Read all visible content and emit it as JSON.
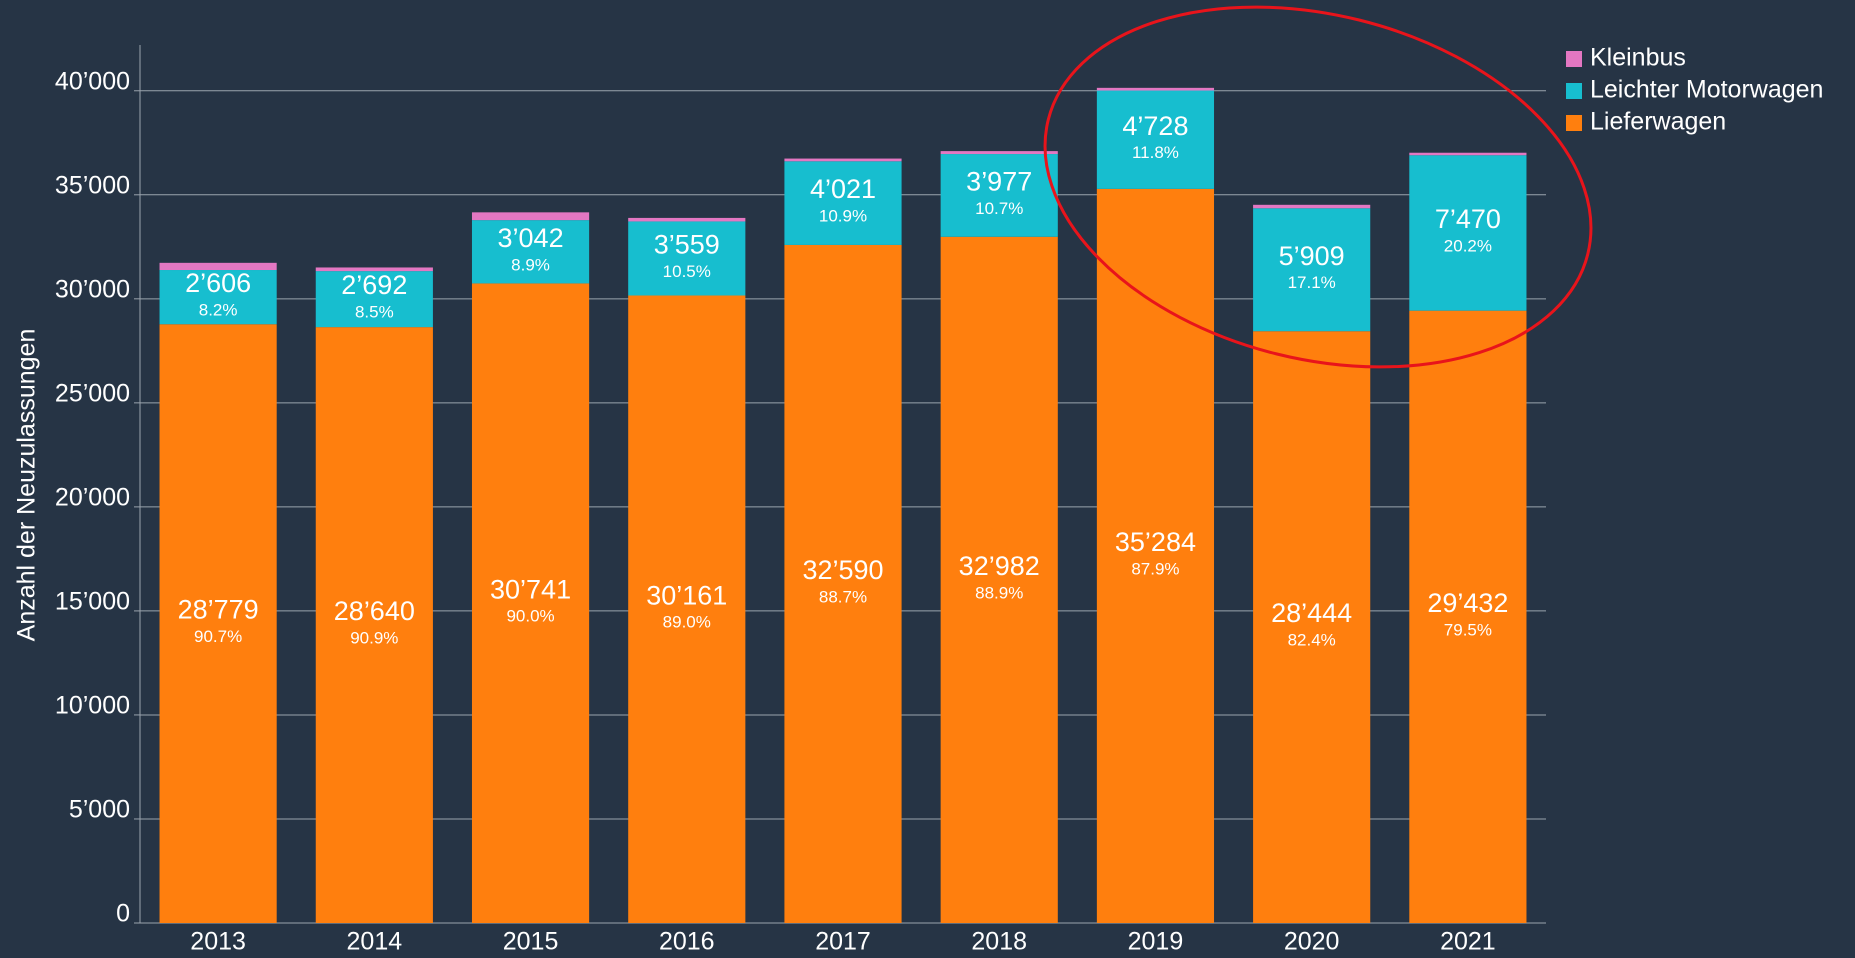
{
  "chart_data": {
    "type": "stacked_bar",
    "y_label": "Anzahl der Neuzulassungen",
    "categories": [
      "2013",
      "2014",
      "2015",
      "2016",
      "2017",
      "2018",
      "2019",
      "2020",
      "2021"
    ],
    "series": [
      {
        "name": "Lieferwagen",
        "color": "#ff7f0e",
        "values": [
          28779,
          28640,
          30741,
          30161,
          32590,
          32982,
          35284,
          28444,
          29432
        ],
        "value_labels": [
          "28’779",
          "28’640",
          "30’741",
          "30’161",
          "32’590",
          "32’982",
          "35’284",
          "28’444",
          "29’432"
        ],
        "share_labels": [
          "90.7%",
          "90.9%",
          "90.0%",
          "89.0%",
          "88.7%",
          "88.9%",
          "87.9%",
          "82.4%",
          "79.5%"
        ]
      },
      {
        "name": "Leichter Motorwagen",
        "color": "#17becf",
        "values": [
          2606,
          2692,
          3042,
          3559,
          4021,
          3977,
          4728,
          5909,
          7470
        ],
        "value_labels": [
          "2’606",
          "2’692",
          "3’042",
          "3’559",
          "4’021",
          "3’977",
          "4’728",
          "5’909",
          "7’470"
        ],
        "share_labels": [
          "8.2%",
          "8.5%",
          "8.9%",
          "10.5%",
          "10.9%",
          "10.7%",
          "11.8%",
          "17.1%",
          "20.2%"
        ]
      },
      {
        "name": "Kleinbus",
        "color": "#e377c2",
        "values": [
          345,
          175,
          374,
          169,
          131,
          141,
          129,
          166,
          120
        ]
      }
    ],
    "ylim": [
      0,
      42200
    ],
    "yticks": [
      0,
      {
        "value": 5000,
        "label": "5’000"
      },
      {
        "value": 10000,
        "label": "10’000"
      },
      {
        "value": 15000,
        "label": "15’000"
      },
      {
        "value": 20000,
        "label": "20’000"
      },
      {
        "value": 25000,
        "label": "25’000"
      },
      {
        "value": 30000,
        "label": "30’000"
      },
      {
        "value": 35000,
        "label": "35’000"
      },
      {
        "value": 40000,
        "label": "40’000"
      }
    ],
    "grid": true,
    "legend": "top-right"
  }
}
